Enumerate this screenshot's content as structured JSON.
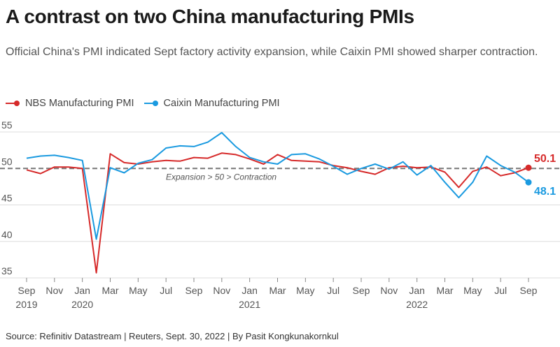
{
  "title": "A contrast on two China manufacturing PMIs",
  "subtitle": "Official China's PMI indicated Sept factory activity expansion, while Caixin PMI showed sharper contraction.",
  "source": "Source: Refinitiv Datastream | Reuters, Sept. 30, 2022 | By Pasit Kongkunakornkul",
  "chart_data": {
    "type": "line",
    "title": "A contrast on two China manufacturing PMIs",
    "subtitle": "Official China's PMI indicated Sept factory activity expansion, while Caixin PMI showed sharper contraction.",
    "ylim": [
      35,
      55
    ],
    "yticks": [
      35,
      40,
      45,
      50,
      55
    ],
    "grid": true,
    "legend_position": "top-left",
    "reference_line": {
      "value": 50,
      "label": "Expansion > 50 > Contraction"
    },
    "x": [
      "2019-09",
      "2019-10",
      "2019-11",
      "2019-12",
      "2020-01",
      "2020-02",
      "2020-03",
      "2020-04",
      "2020-05",
      "2020-06",
      "2020-07",
      "2020-08",
      "2020-09",
      "2020-10",
      "2020-11",
      "2020-12",
      "2021-01",
      "2021-02",
      "2021-03",
      "2021-04",
      "2021-05",
      "2021-06",
      "2021-07",
      "2021-08",
      "2021-09",
      "2021-10",
      "2021-11",
      "2021-12",
      "2022-01",
      "2022-02",
      "2022-03",
      "2022-04",
      "2022-05",
      "2022-06",
      "2022-07",
      "2022-08",
      "2022-09"
    ],
    "xtick_labels": [
      {
        "i": 0,
        "month": "Sep",
        "year": "2019"
      },
      {
        "i": 2,
        "month": "Nov",
        "year": ""
      },
      {
        "i": 4,
        "month": "Jan",
        "year": "2020"
      },
      {
        "i": 6,
        "month": "Mar",
        "year": ""
      },
      {
        "i": 8,
        "month": "May",
        "year": ""
      },
      {
        "i": 10,
        "month": "Jul",
        "year": ""
      },
      {
        "i": 12,
        "month": "Sep",
        "year": ""
      },
      {
        "i": 14,
        "month": "Nov",
        "year": ""
      },
      {
        "i": 16,
        "month": "Jan",
        "year": "2021"
      },
      {
        "i": 18,
        "month": "Mar",
        "year": ""
      },
      {
        "i": 20,
        "month": "May",
        "year": ""
      },
      {
        "i": 22,
        "month": "Jul",
        "year": ""
      },
      {
        "i": 24,
        "month": "Sep",
        "year": ""
      },
      {
        "i": 26,
        "month": "Nov",
        "year": ""
      },
      {
        "i": 28,
        "month": "Jan",
        "year": "2022"
      },
      {
        "i": 30,
        "month": "Mar",
        "year": ""
      },
      {
        "i": 32,
        "month": "May",
        "year": ""
      },
      {
        "i": 34,
        "month": "Jul",
        "year": ""
      },
      {
        "i": 36,
        "month": "Sep",
        "year": ""
      }
    ],
    "series": [
      {
        "name": "NBS Manufacturing PMI",
        "color": "#d62a2a",
        "end_label": "50.1",
        "values": [
          49.8,
          49.3,
          50.2,
          50.2,
          50.0,
          35.7,
          52.0,
          50.8,
          50.6,
          50.9,
          51.1,
          51.0,
          51.5,
          51.4,
          52.1,
          51.9,
          51.3,
          50.6,
          51.9,
          51.1,
          51.0,
          50.9,
          50.4,
          50.1,
          49.6,
          49.2,
          50.1,
          50.3,
          50.1,
          50.2,
          49.5,
          47.4,
          49.6,
          50.2,
          49.0,
          49.4,
          50.1
        ]
      },
      {
        "name": "Caixin Manufacturing PMI",
        "color": "#1a9ae0",
        "end_label": "48.1",
        "values": [
          51.4,
          51.7,
          51.8,
          51.5,
          51.1,
          40.3,
          50.1,
          49.4,
          50.7,
          51.2,
          52.8,
          53.1,
          53.0,
          53.6,
          54.9,
          53.0,
          51.5,
          50.9,
          50.6,
          51.9,
          52.0,
          51.3,
          50.3,
          49.2,
          50.0,
          50.6,
          49.9,
          50.9,
          49.1,
          50.4,
          48.1,
          46.0,
          48.1,
          51.7,
          50.4,
          49.5,
          48.1
        ]
      }
    ]
  }
}
